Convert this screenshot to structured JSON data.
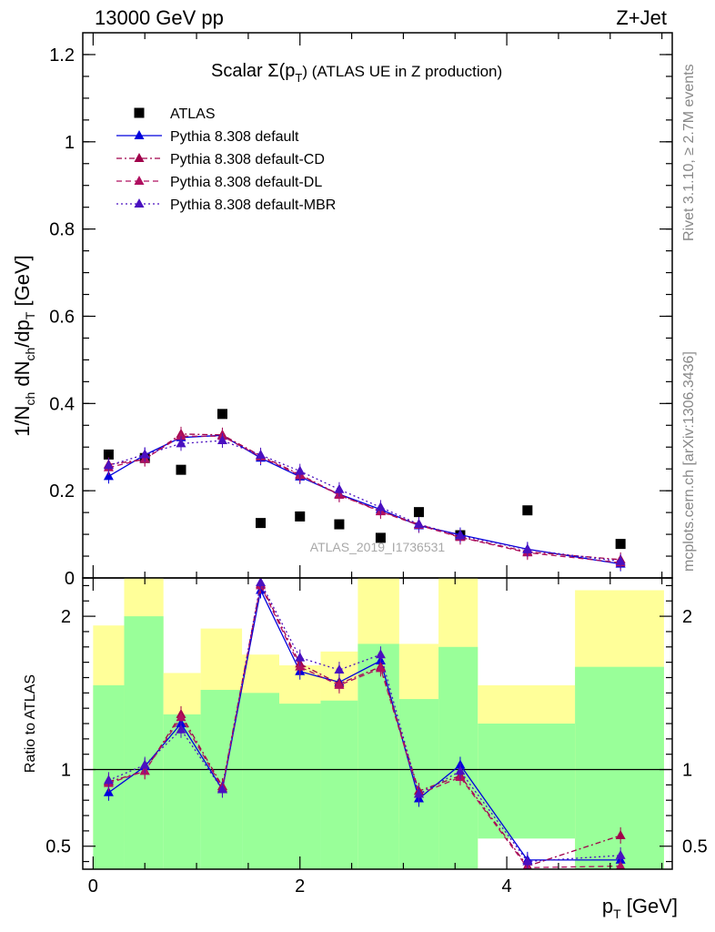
{
  "header": {
    "energy_label": "13000 GeV pp",
    "process_label": "Z+Jet"
  },
  "side_labels": {
    "rivet": "Rivet 3.1.10, ≥ 2.7M events",
    "mcplots": "mcplots.cern.ch [arXiv:1306.3436]"
  },
  "watermark": "ATLAS_2019_I1736531",
  "chart_data": [
    {
      "type": "scatter",
      "title_main": "Scalar Σ(p",
      "title_sub": "T",
      "title_tail": ") (ATLAS UE in Z production)",
      "ylabel": "1/N_ch dN_ch/dp_T [GeV]",
      "ylim": [
        0,
        1.25
      ],
      "xlim": [
        -0.1,
        5.6
      ],
      "yticks": [
        "0",
        "0.2",
        "0.4",
        "0.6",
        "0.8",
        "1",
        "1.2"
      ],
      "ytick_values": [
        0,
        0.2,
        0.4,
        0.6,
        0.8,
        1.0,
        1.2
      ],
      "legend_position": "top-left",
      "x": [
        0.15,
        0.5,
        0.85,
        1.25,
        1.62,
        2.0,
        2.38,
        2.78,
        3.15,
        3.55,
        4.2,
        5.1
      ],
      "series": [
        {
          "name": "ATLAS",
          "color": "#000000",
          "marker": "square",
          "line": "none",
          "values": [
            0.283,
            0.275,
            0.248,
            0.376,
            0.126,
            0.141,
            0.123,
            0.092,
            0.151,
            0.098,
            0.155,
            0.078
          ]
        },
        {
          "name": "Pythia 8.308 default",
          "color": "#0000dd",
          "marker": "triangle",
          "line": "solid",
          "values": [
            0.233,
            0.282,
            0.322,
            0.327,
            0.275,
            0.232,
            0.192,
            0.157,
            0.12,
            0.099,
            0.066,
            0.032
          ]
        },
        {
          "name": "Pythia 8.308 default-CD",
          "color": "#a0004a",
          "marker": "triangle",
          "line": "dashdot",
          "values": [
            0.26,
            0.272,
            0.33,
            0.328,
            0.28,
            0.237,
            0.191,
            0.153,
            0.123,
            0.094,
            0.06,
            0.042
          ]
        },
        {
          "name": "Pythia 8.308 default-DL",
          "color": "#b01060",
          "marker": "triangle",
          "line": "dashed",
          "values": [
            0.253,
            0.273,
            0.325,
            0.325,
            0.278,
            0.235,
            0.19,
            0.152,
            0.121,
            0.093,
            0.058,
            0.035
          ]
        },
        {
          "name": "Pythia 8.308 default-MBR",
          "color": "#4a10c0",
          "marker": "triangle",
          "line": "dotted",
          "values": [
            0.258,
            0.283,
            0.308,
            0.315,
            0.282,
            0.245,
            0.203,
            0.162,
            0.123,
            0.097,
            0.065,
            0.038
          ]
        }
      ]
    },
    {
      "type": "scatter",
      "ylabel": "Ratio to ATLAS",
      "xlabel": "p_T [GeV]",
      "ylim": [
        0.35,
        2.25
      ],
      "xlim": [
        -0.1,
        5.6
      ],
      "xticks": [
        "0",
        "2",
        "4"
      ],
      "xtick_values": [
        0,
        2,
        4
      ],
      "yticks": [
        "0.5",
        "1",
        "2"
      ],
      "ytick_values": [
        0.5,
        1.0,
        2.0
      ],
      "reference_line": 1.0,
      "band_edges": [
        0.0,
        0.3,
        0.68,
        1.04,
        1.44,
        1.8,
        2.2,
        2.56,
        2.96,
        3.34,
        3.72,
        4.66,
        5.52
      ],
      "yellow_band": {
        "low": [
          0.53,
          0.2,
          0.75,
          0.57,
          0.6,
          0.73,
          0.67,
          0.2,
          0.65,
          0.2,
          0.8,
          0.2
        ],
        "high": [
          1.94,
          2.25,
          1.63,
          1.92,
          1.75,
          1.68,
          1.77,
          2.25,
          1.82,
          2.25,
          1.55,
          2.17
        ]
      },
      "green_band": {
        "low": [
          0.2,
          0.2,
          0.2,
          0.2,
          0.2,
          0.2,
          0.2,
          0.2,
          0.2,
          0.2,
          0.55,
          0.2
        ],
        "high": [
          1.55,
          2.0,
          1.36,
          1.52,
          1.5,
          1.43,
          1.45,
          1.82,
          1.46,
          1.8,
          1.3,
          1.67
        ]
      },
      "x": [
        0.15,
        0.5,
        0.85,
        1.25,
        1.62,
        2.0,
        2.38,
        2.78,
        3.15,
        3.55,
        4.2,
        5.1
      ],
      "series": [
        {
          "name": "Pythia 8.308 default",
          "color": "#0000dd",
          "line": "solid",
          "values": [
            0.85,
            1.02,
            1.3,
            0.87,
            2.17,
            1.64,
            1.57,
            1.71,
            0.81,
            1.03,
            0.41,
            0.41
          ]
        },
        {
          "name": "Pythia 8.308 default-CD",
          "color": "#a0004a",
          "line": "dashdot",
          "values": [
            0.92,
            0.99,
            1.36,
            0.89,
            2.21,
            1.69,
            1.56,
            1.67,
            0.86,
            0.96,
            0.37,
            0.57
          ]
        },
        {
          "name": "Pythia 8.308 default-DL",
          "color": "#b01060",
          "line": "dashed",
          "values": [
            0.91,
            0.99,
            1.34,
            0.88,
            2.2,
            1.67,
            1.55,
            1.66,
            0.84,
            0.95,
            0.36,
            0.37
          ]
        },
        {
          "name": "Pythia 8.308 default-MBR",
          "color": "#4a10c0",
          "line": "dotted",
          "values": [
            0.93,
            1.03,
            1.26,
            0.87,
            2.22,
            1.73,
            1.65,
            1.75,
            0.84,
            0.99,
            0.4,
            0.44
          ]
        }
      ]
    }
  ]
}
